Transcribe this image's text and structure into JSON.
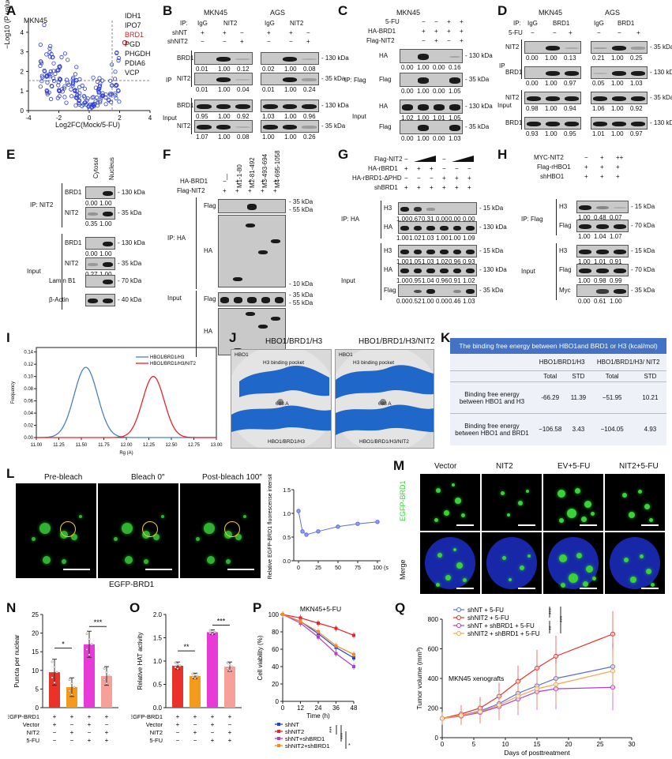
{
  "panel_letters": [
    "A",
    "B",
    "C",
    "D",
    "E",
    "F",
    "G",
    "H",
    "I",
    "J",
    "K",
    "L",
    "M",
    "N",
    "O",
    "P",
    "Q"
  ],
  "A": {
    "cell": "MKN45",
    "ylabel": "−Log10 (P value)",
    "xlabel": "Log2FC(Mock/5-FU)",
    "xticks": [
      "-4",
      "-2",
      "0",
      "2",
      "4"
    ],
    "yticks": [
      "0",
      "1",
      "2",
      "3",
      "4"
    ],
    "genes": [
      "IDH1",
      "IPO7",
      "BRD1",
      "PGD",
      "PHGDH",
      "PDIA6",
      "VCP"
    ],
    "highlight_color": "#e41a1c"
  },
  "B": {
    "ip_label": "IP:",
    "cells": [
      "MKN45",
      "AGS"
    ],
    "lanes": [
      "IgG",
      "NIT2",
      "IgG",
      "NIT2"
    ],
    "rows": [
      "shNT",
      "shNIT2"
    ],
    "signs": {
      "shNT": [
        "+",
        "+",
        "−",
        "+",
        "+",
        "−"
      ],
      "shNIT2": [
        "−",
        "−",
        "+",
        "−",
        "−",
        "+"
      ]
    },
    "ip": "IP",
    "input": "Input",
    "blots": [
      "BRD1",
      "NIT2",
      "BRD1",
      "NIT2"
    ],
    "vals": [
      [
        "0.01",
        "1.00",
        "0.12",
        "0.02",
        "1.00",
        "0.08"
      ],
      [
        "0.01",
        "1.00",
        "0.04",
        "0.01",
        "1.00",
        "0.24"
      ],
      [
        "0.95",
        "1.00",
        "0.92",
        "1.03",
        "1.00",
        "0.96"
      ],
      [
        "1.07",
        "1.00",
        "0.08",
        "1.00",
        "1.00",
        "0.26"
      ]
    ],
    "kda": [
      "130 kDa",
      "35 kDa",
      "130 kDa",
      "35 kDa"
    ]
  },
  "C": {
    "cell": "MKN45",
    "rows": [
      "5-FU",
      "HA-BRD1",
      "Flag-NIT2"
    ],
    "signs": [
      [
        "−",
        "−",
        "+",
        "+"
      ],
      [
        "+",
        "+",
        "+",
        "+"
      ],
      [
        "−",
        "+",
        "−",
        "+"
      ]
    ],
    "blots": [
      "HA",
      "Flag",
      "HA",
      "Flag"
    ],
    "vals": [
      [
        "0.00",
        "1.00",
        "0.00",
        "0.16"
      ],
      [
        "0.00",
        "1.00",
        "0.00",
        "1.05"
      ],
      [
        "1.02",
        "1.00",
        "1.01",
        "1.05"
      ],
      [
        "0.00",
        "1.00",
        "0.00",
        "1.03"
      ]
    ],
    "kda": [
      "130 kDa",
      "35 kDa",
      "130 kDa",
      "35 kDa"
    ],
    "ip": "IP: Flag",
    "input": "Input"
  },
  "D": {
    "cells": [
      "MKN45",
      "AGS"
    ],
    "ip_label": "IP:",
    "lanes": [
      "IgG",
      "BRD1",
      "IgG",
      "BRD1"
    ],
    "rows": [
      "5-FU"
    ],
    "signs": [
      "−",
      "−",
      "+",
      "−",
      "−",
      "+"
    ],
    "blots": [
      "NIT2",
      "BRD1",
      "NIT2",
      "BRD1"
    ],
    "vals": [
      [
        "0.00",
        "1.00",
        "0.13",
        "0.21",
        "1.00",
        "0.25"
      ],
      [
        "0.00",
        "1.00",
        "0.97",
        "0.05",
        "1.00",
        "1.03"
      ],
      [
        "0.98",
        "1.00",
        "0.94",
        "1.06",
        "1.00",
        "0.92"
      ],
      [
        "0.93",
        "1.00",
        "0.95",
        "1.01",
        "1.00",
        "0.97"
      ]
    ],
    "kda": [
      "35 kDa",
      "130 kDa",
      "35 kDa",
      "130 kDa"
    ],
    "ip": "IP",
    "input": "Input"
  },
  "E": {
    "cols": [
      "Cytosol",
      "Nucleus"
    ],
    "ip": "IP: NIT2",
    "input": "Input",
    "blots": [
      "BRD1",
      "NIT2",
      "BRD1",
      "NIT2",
      "Lamin B1",
      "β-Actin"
    ],
    "vals": [
      [
        "0.00",
        "1.00"
      ],
      [
        "0.35",
        "1.00"
      ],
      [
        "0.00",
        "1.00"
      ],
      [
        "0.27",
        "1.00"
      ]
    ],
    "kda": [
      "130 kDa",
      "35 kDa",
      "130 kDa",
      "35 kDa",
      "70 kDa",
      "40 kDa"
    ]
  },
  "F": {
    "lanes": [
      "—",
      "M1-1-80",
      "M2-81-492",
      "M3-493-694",
      "M4-695-1058"
    ],
    "rows": [
      "HA-BRD1",
      "Flag-NIT2"
    ],
    "signs": [
      [
        "−",
        "+",
        "+",
        "+",
        "+"
      ],
      [
        "+",
        "+",
        "+",
        "+",
        "+"
      ]
    ],
    "blots": [
      "Flag",
      "HA",
      "Flag",
      "HA"
    ],
    "kda": [
      "35 kDa",
      "55 kDa",
      "10 kDa",
      "35 kDa",
      "55 kDa",
      "10 kDa"
    ],
    "ip": "IP: HA",
    "input": "Input"
  },
  "G": {
    "rows": [
      "Flag-NIT2",
      "HA-rBRD1",
      "HA-rBRD1-ΔPHD",
      "shBRD1"
    ],
    "signs": [
      [
        "−",
        "",
        "",
        "−",
        "",
        ""
      ],
      [
        "+",
        "+",
        "+",
        "−",
        "−",
        "−"
      ],
      [
        "−",
        "−",
        "−",
        "+",
        "+",
        "+"
      ],
      [
        "+",
        "+",
        "+",
        "+",
        "+",
        "+"
      ]
    ],
    "blots": [
      "H3",
      "HA",
      "H3",
      "HA",
      "Flag"
    ],
    "vals": [
      [
        "1.00",
        "0.67",
        "0.31",
        "0.00",
        "0.00",
        "0.00"
      ],
      [
        "1.00",
        "1.02",
        "1.03",
        "1.00",
        "1.00",
        "1.09"
      ],
      [
        "1.00",
        "1.05",
        "1.03",
        "1.02",
        "0.96",
        "0.93"
      ],
      [
        "1.00",
        "0.95",
        "1.04",
        "0.96",
        "0.91",
        "1.02"
      ],
      [
        "0.00",
        "0.52",
        "1.00",
        "0.00",
        "0.46",
        "1.03"
      ]
    ],
    "kda": [
      "15 kDa",
      "130 kDa",
      "15 kDa",
      "130 kDa",
      "35 kDa"
    ],
    "ip": "IP: HA",
    "input": "Input"
  },
  "H": {
    "rows": [
      "MYC-NIT2",
      "Flag-rHBO1",
      "shHBO1"
    ],
    "signs": [
      [
        "−",
        "+",
        "++"
      ],
      [
        "+",
        "+",
        "+"
      ],
      [
        "+",
        "+",
        "+"
      ]
    ],
    "blots": [
      "H3",
      "Flag",
      "H3",
      "Flag",
      "Myc"
    ],
    "vals": [
      [
        "1.00",
        "0.48",
        "0.07"
      ],
      [
        "1.00",
        "1.04",
        "1.07"
      ],
      [
        "1.00",
        "1.01",
        "0.91"
      ],
      [
        "1.00",
        "0.98",
        "0.99"
      ],
      [
        "0.00",
        "0.61",
        "1.00"
      ]
    ],
    "kda": [
      "15 kDa",
      "70 kDa",
      "15 kDa",
      "70 kDa",
      "35 kDa"
    ],
    "ip": "IP: Flag",
    "input": "Input"
  },
  "I": {
    "xlabel": "Rg (A)",
    "ylabel": "Frequency",
    "xticks": [
      "11.00",
      "11.25",
      "11.50",
      "11.75",
      "12.00",
      "12.25",
      "12.50",
      "12.75",
      "13.00"
    ],
    "yticks": [
      "0.00",
      "0.02",
      "0.04",
      "0.06",
      "0.08",
      "0.10",
      "0.12",
      "0.14"
    ],
    "legend": [
      "HBO1/BRD1/H3",
      "HBO1/BRD1/H3/NIT2"
    ],
    "colors": [
      "#4a7fc1",
      "#e8242b"
    ]
  },
  "J": {
    "titles": [
      "HBO1/BRD1/H3",
      "HBO1/BRD1/H3/NIT2"
    ],
    "labels": [
      [
        "HBO1",
        "H3 binding pocket",
        "688 A",
        "HBO1/BRD1/H3"
      ],
      [
        "HBO1",
        "H3 binding pocket",
        "688 A",
        "HBO1/BRD1/H3/NIT2"
      ]
    ]
  },
  "K": {
    "title": "The binding free energy between HBO1and BRD1 or H3 (kcal/mol)",
    "groups": [
      "HBO1/BRD1/H3",
      "HBO1/BRD1/H3/ NIT2"
    ],
    "sub": [
      "Total",
      "STD",
      "Total",
      "STD"
    ],
    "rows": [
      {
        "label": "Binding free energy between HBO1 and H3",
        "vals": [
          "-66.29",
          "11.39",
          "−51.95",
          "10.21"
        ]
      },
      {
        "label": "Binding free energy between HBO1 and BRD1",
        "vals": [
          "−106.58",
          "3.43",
          "−104.05",
          "4.93"
        ]
      }
    ]
  },
  "L": {
    "frames": [
      "Pre-bleach",
      "Bleach 0″",
      "Post-bleach 100″"
    ],
    "caption": "EGFP-BRD1",
    "ylabel": "Relative EGFP-BRD1 fluorescense intensity",
    "xticks": [
      "0",
      "25",
      "50",
      "75",
      "100"
    ],
    "xunit": "(s)",
    "yticks": [
      "0.0",
      "0.5",
      "1.0",
      "1.5"
    ],
    "chart_data": {
      "type": "line",
      "x": [
        0,
        5,
        10,
        25,
        50,
        75,
        100
      ],
      "y": [
        1.05,
        0.62,
        0.55,
        0.62,
        0.72,
        0.78,
        0.82
      ],
      "ylim": [
        0,
        1.5
      ]
    }
  },
  "M": {
    "cols": [
      "Vector",
      "NIT2",
      "EV+5-FU",
      "NIT2+5-FU"
    ],
    "rows": [
      "EGFP-BRD1",
      "Merge"
    ]
  },
  "N": {
    "ylabel": "Puncta per nuclear",
    "yticks": [
      "0",
      "5",
      "10",
      "15",
      "20",
      "25"
    ],
    "rows": [
      "EGFP-BRD1",
      "Vector",
      "NIT2",
      "5-FU"
    ],
    "signs": [
      [
        "+",
        "+",
        "+",
        "+"
      ],
      [
        "+",
        "−",
        "+",
        "−"
      ],
      [
        "−",
        "+",
        "−",
        "+"
      ],
      [
        "−",
        "−",
        "+",
        "+"
      ]
    ],
    "sig": [
      "*",
      "***"
    ],
    "chart_data": {
      "type": "bar",
      "categories": [
        "1",
        "2",
        "3",
        "4"
      ],
      "values": [
        9.5,
        5.5,
        17,
        8.5
      ],
      "errors": [
        3.5,
        2.5,
        3.5,
        2.5
      ],
      "ylim": [
        0,
        25
      ]
    },
    "colors": [
      "#e8322a",
      "#f49a1c",
      "#e83ad6",
      "#f7a09a"
    ]
  },
  "O": {
    "ylabel": "Relative HAT activity",
    "yticks": [
      "0.0",
      "0.5",
      "1.0",
      "1.5",
      "2.0"
    ],
    "rows": [
      "EGFP-BRD1",
      "Vector",
      "NIT2",
      "5-FU"
    ],
    "signs": [
      [
        "+",
        "+",
        "+",
        "+"
      ],
      [
        "+",
        "−",
        "+",
        "−"
      ],
      [
        "−",
        "+",
        "−",
        "+"
      ],
      [
        "−",
        "−",
        "+",
        "+"
      ]
    ],
    "sig": [
      "**",
      "***"
    ],
    "chart_data": {
      "type": "bar",
      "categories": [
        "1",
        "2",
        "3",
        "4"
      ],
      "values": [
        0.9,
        0.68,
        1.62,
        0.88
      ],
      "errors": [
        0.08,
        0.06,
        0.05,
        0.1
      ],
      "ylim": [
        0,
        2
      ]
    },
    "colors": [
      "#e8322a",
      "#f49a1c",
      "#e83ad6",
      "#f7a09a"
    ]
  },
  "P": {
    "title": "MKN45+5-FU",
    "ylabel": "Cell viability (%)",
    "xlabel": "Time (h)",
    "xticks": [
      "0",
      "12",
      "24",
      "36",
      "48"
    ],
    "yticks": [
      "0",
      "20",
      "40",
      "60",
      "80",
      "100"
    ],
    "legend": [
      "shNT",
      "shNIT2",
      "shNT+shBRD1",
      "shNIT2+shBRD1"
    ],
    "colors": [
      "#1e3fe0",
      "#e8242b",
      "#b23bd6",
      "#f58a1f"
    ],
    "sig": [
      "***",
      "***",
      "*"
    ],
    "chart_data": {
      "type": "line",
      "x": [
        0,
        12,
        24,
        36,
        48
      ],
      "series": [
        {
          "name": "shNT",
          "values": [
            100,
            92,
            78,
            62,
            50
          ]
        },
        {
          "name": "shNIT2",
          "values": [
            100,
            96,
            90,
            84,
            76
          ]
        },
        {
          "name": "shNT+shBRD1",
          "values": [
            100,
            90,
            74,
            55,
            40
          ]
        },
        {
          "name": "shNIT2+shBRD1",
          "values": [
            100,
            92,
            80,
            64,
            54
          ]
        }
      ],
      "ylim": [
        0,
        100
      ]
    }
  },
  "Q": {
    "ylabel": "Tumor volume (mm³)",
    "xlabel": "Days of posttreatment",
    "subtitle": "MKN45 xenografts",
    "xticks": [
      "0",
      "5",
      "10",
      "15",
      "20",
      "25",
      "30"
    ],
    "yticks": [
      "0",
      "200",
      "400",
      "600",
      "800"
    ],
    "legend": [
      "shNT + 5-FU",
      "shNIT2 + 5-FU",
      "shNT + shBRD1 + 5-FU",
      "shNIT2 + shBRD1 + 5-FU"
    ],
    "colors": [
      "#5a6bd8",
      "#e8322a",
      "#b23bd6",
      "#f5a54a"
    ],
    "sig": [
      "***",
      "***",
      "**"
    ],
    "chart_data": {
      "type": "line",
      "x": [
        0,
        3,
        6,
        9,
        12,
        15,
        18,
        27
      ],
      "series": [
        {
          "name": "shNT + 5-FU",
          "values": [
            130,
            150,
            180,
            230,
            300,
            350,
            400,
            480
          ]
        },
        {
          "name": "shNIT2 + 5-FU",
          "values": [
            130,
            160,
            200,
            280,
            380,
            470,
            550,
            700
          ]
        },
        {
          "name": "shNT + shBRD1 + 5-FU",
          "values": [
            130,
            145,
            170,
            210,
            260,
            310,
            330,
            340
          ]
        },
        {
          "name": "shNIT2 + shBRD1 + 5-FU",
          "values": [
            130,
            150,
            175,
            220,
            280,
            330,
            360,
            450
          ]
        }
      ],
      "ylim": [
        0,
        800
      ]
    }
  }
}
